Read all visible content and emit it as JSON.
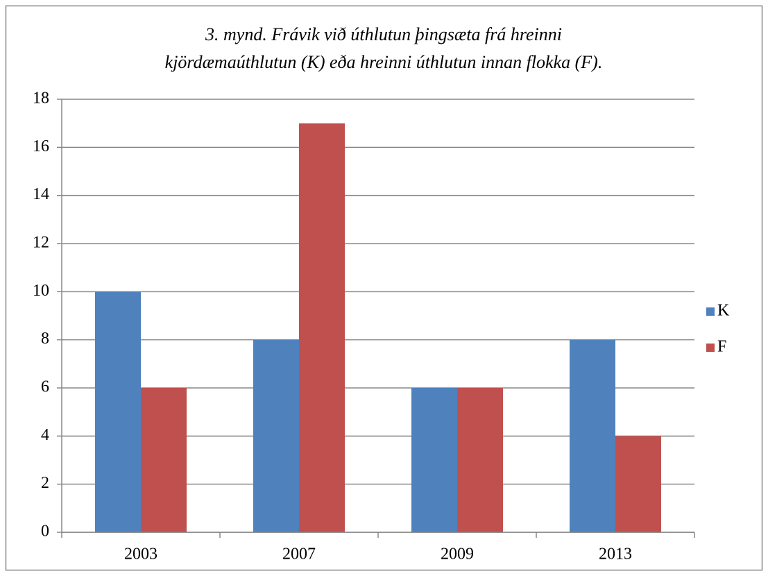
{
  "chart_data": {
    "type": "bar",
    "title": [
      "3. mynd. Frávik við úthlutun þingsæta frá hreinni",
      "kjördæmaúthlutun (K) eða hreinni úthlutun innan flokka (F)."
    ],
    "categories": [
      "2003",
      "2007",
      "2009",
      "2013"
    ],
    "series": [
      {
        "name": "K",
        "color": "#4f81bd",
        "values": [
          10,
          8,
          6,
          8
        ]
      },
      {
        "name": "F",
        "color": "#c0504d",
        "values": [
          6,
          17,
          6,
          4
        ]
      }
    ],
    "ylim": [
      0,
      18
    ],
    "yticks": [
      0,
      2,
      4,
      6,
      8,
      10,
      12,
      14,
      16,
      18
    ],
    "grid": true,
    "legend": "right"
  }
}
